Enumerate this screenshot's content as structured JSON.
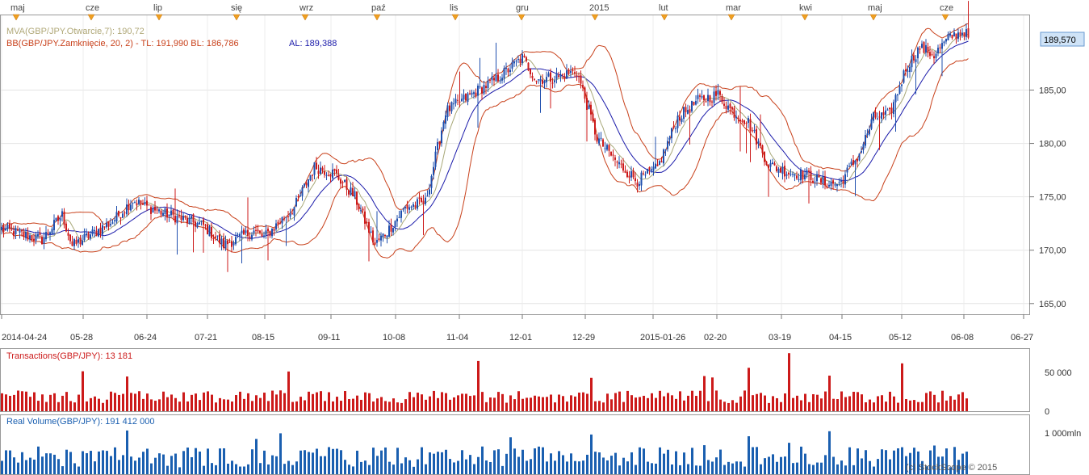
{
  "pair": "GBP/JPY",
  "months_top": [
    "maj",
    "cze",
    "lip",
    "się",
    "wrz",
    "paź",
    "lis",
    "gru",
    "2015",
    "lut",
    "mar",
    "kwi",
    "maj",
    "cze"
  ],
  "legend": {
    "mva": "MVA(GBP/JPY.Otwarcie,7): 190,72",
    "bb": "BB(GBP/JPY.Zamknięcie, 20, 2) -  TL: 191,990  BL: 186,786",
    "al": "AL: 189,388"
  },
  "last_price": "189,570",
  "watermark": "(c) StockScope © 2015",
  "colors": {
    "up": "#1f4fae",
    "down": "#cc1a1a",
    "bb": "#c8401a",
    "mva": "#a8a878",
    "al": "#1a1aaa",
    "volume": "#1a5fb0",
    "transactions": "#cc1a1a",
    "axis": "#555555"
  },
  "chart_data": [
    {
      "type": "candlestick",
      "title": "",
      "x_ticks": [
        "2014-04-24",
        "05-28",
        "06-24",
        "07-21",
        "08-15",
        "09-11",
        "10-08",
        "11-04",
        "12-01",
        "12-29",
        "2015-01-26",
        "02-20",
        "03-19",
        "04-15",
        "05-12",
        "06-08",
        "06-27"
      ],
      "y_ticks": [
        "185,00",
        "180,00",
        "175,00",
        "170,00",
        "165,00"
      ],
      "ylim": [
        164,
        192
      ],
      "close_waypoints": [
        [
          0,
          172
        ],
        [
          20,
          171
        ],
        [
          30,
          173.3
        ],
        [
          35,
          170.4
        ],
        [
          55,
          172.7
        ],
        [
          65,
          174.7
        ],
        [
          70,
          174.2
        ],
        [
          80,
          173.5
        ],
        [
          100,
          172.3
        ],
        [
          110,
          170.5
        ],
        [
          125,
          171.8
        ],
        [
          130,
          171.2
        ],
        [
          145,
          174
        ],
        [
          155,
          177.8
        ],
        [
          165,
          177.2
        ],
        [
          175,
          175
        ],
        [
          185,
          170.5
        ],
        [
          192,
          172
        ],
        [
          200,
          174
        ],
        [
          210,
          174.5
        ],
        [
          220,
          183
        ],
        [
          232,
          184.5
        ],
        [
          245,
          186
        ],
        [
          258,
          188
        ],
        [
          265,
          186
        ],
        [
          275,
          186.2
        ],
        [
          285,
          186.8
        ],
        [
          295,
          180.5
        ],
        [
          305,
          178.2
        ],
        [
          315,
          176.5
        ],
        [
          325,
          177.7
        ],
        [
          335,
          182.4
        ],
        [
          345,
          184
        ],
        [
          355,
          184.6
        ],
        [
          362,
          183
        ],
        [
          370,
          182
        ],
        [
          380,
          178
        ],
        [
          390,
          177.3
        ],
        [
          400,
          177
        ],
        [
          408,
          176.3
        ],
        [
          415,
          176.2
        ],
        [
          425,
          179
        ],
        [
          432,
          182.4
        ],
        [
          440,
          182.7
        ],
        [
          448,
          187
        ],
        [
          455,
          189
        ],
        [
          462,
          188.3
        ],
        [
          470,
          190
        ],
        [
          477,
          190.5
        ],
        [
          480,
          189.6
        ]
      ],
      "overlays": {
        "bollinger_period": 20,
        "bollinger_k": 2,
        "sma_period": 20,
        "mva_period": 7
      },
      "last_values": {
        "bb_upper": 191.99,
        "bb_lower": 186.786,
        "al": 189.388,
        "mva": 190.72,
        "last": 189.57
      }
    },
    {
      "type": "bar",
      "title": "Transactions(GBP/JPY): 13 181",
      "y_ticks": [
        "50 000",
        "0"
      ],
      "ylim": [
        0,
        70000
      ],
      "last_value": 13181
    },
    {
      "type": "bar",
      "title": "Real Volume(GBP/JPY): 191 412 000",
      "y_ticks": [
        "1 000mln"
      ],
      "ylim": [
        0,
        1400
      ],
      "last_value": 191.412
    }
  ]
}
